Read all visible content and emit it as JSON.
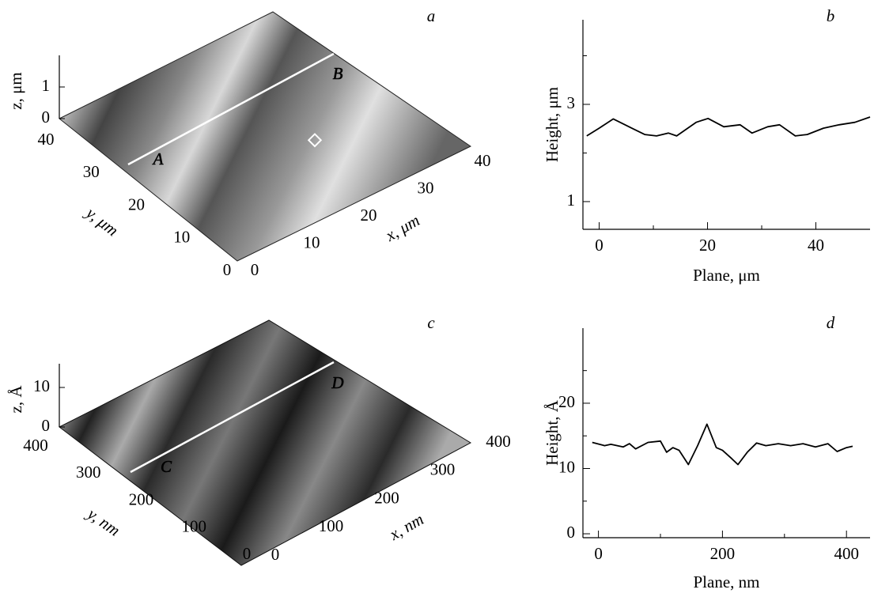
{
  "chart_data": [
    {
      "type": "surface",
      "panel": "a",
      "zlabel": "z, μm",
      "xlabel": "x, μm",
      "ylabel": "y, μm",
      "zlim": [
        0,
        1
      ],
      "zticks": [
        0,
        1
      ],
      "xlim": [
        0,
        40
      ],
      "xticks": [
        0,
        10,
        20,
        30,
        40
      ],
      "ylim": [
        0,
        40
      ],
      "yticks": [
        0,
        10,
        20,
        30,
        40
      ],
      "line_labels": [
        "A",
        "B"
      ]
    },
    {
      "type": "line",
      "panel": "b",
      "xlabel": "Plane, μm",
      "ylabel": "Height, μm",
      "color": "#000000",
      "xlim": [
        -3,
        50
      ],
      "ylim": [
        0.43,
        4.74
      ],
      "xticks": [
        0,
        20,
        40
      ],
      "yticks": [
        1,
        3
      ],
      "xminor": [
        10,
        30
      ],
      "yminor": [
        2,
        4
      ],
      "x": [
        -2.3,
        0,
        2.6,
        6.2,
        8.4,
        10.6,
        12.8,
        14.3,
        17.9,
        20.1,
        23,
        26,
        28.2,
        31.1,
        33.3,
        36.2,
        38.4,
        41.4,
        44.3,
        47.2,
        50
      ],
      "values": [
        2.35,
        2.51,
        2.7,
        2.5,
        2.38,
        2.35,
        2.41,
        2.35,
        2.63,
        2.71,
        2.54,
        2.58,
        2.41,
        2.54,
        2.58,
        2.35,
        2.38,
        2.51,
        2.58,
        2.63,
        2.74
      ]
    },
    {
      "type": "surface",
      "panel": "c",
      "zlabel": "z, Å",
      "xlabel": "x, nm",
      "ylabel": "y, nm",
      "zlim": [
        0,
        10
      ],
      "zticks": [
        0,
        10
      ],
      "xlim": [
        0,
        400
      ],
      "xticks": [
        0,
        100,
        200,
        300,
        400
      ],
      "ylim": [
        0,
        400
      ],
      "yticks": [
        0,
        100,
        200,
        300,
        400
      ],
      "line_labels": [
        "C",
        "D"
      ]
    },
    {
      "type": "line",
      "panel": "d",
      "xlabel": "Plane, nm",
      "ylabel": "Height, Å",
      "color": "#000000",
      "xlim": [
        -25,
        438
      ],
      "ylim": [
        -0.6,
        31.5
      ],
      "xticks": [
        0,
        200,
        400
      ],
      "yticks": [
        0,
        10,
        20
      ],
      "xminor": [
        100,
        300
      ],
      "yminor": [
        5,
        15,
        25
      ],
      "x": [
        -10,
        10,
        20,
        40,
        50,
        60,
        80,
        100,
        110,
        120,
        130,
        145,
        160,
        175,
        190,
        200,
        215,
        225,
        240,
        255,
        270,
        290,
        310,
        330,
        350,
        370,
        385,
        400,
        410
      ],
      "values": [
        14,
        13.5,
        13.7,
        13.3,
        13.8,
        13,
        14,
        14.2,
        12.5,
        13.2,
        12.8,
        10.6,
        13.5,
        16.8,
        13.2,
        12.8,
        11.5,
        10.6,
        12.5,
        13.9,
        13.5,
        13.8,
        13.5,
        13.8,
        13.3,
        13.8,
        12.6,
        13.2,
        13.4
      ]
    }
  ]
}
